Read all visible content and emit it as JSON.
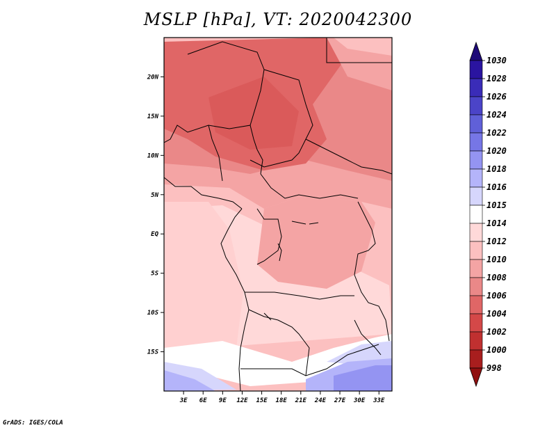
{
  "title": "MSLP [hPa], VT: 2020042300",
  "credit": "GrADS: IGES/COLA",
  "map": {
    "lon_ticks": [
      "3E",
      "6E",
      "9E",
      "12E",
      "15E",
      "18E",
      "21E",
      "24E",
      "27E",
      "30E",
      "33E"
    ],
    "lat_ticks": [
      "20N",
      "15N",
      "10N",
      "5N",
      "EQ",
      "5S",
      "10S",
      "15S"
    ],
    "lon_range": [
      0,
      35
    ],
    "lat_range": [
      -20,
      25
    ]
  },
  "legend": {
    "levels": [
      "1030",
      "1028",
      "1026",
      "1024",
      "1022",
      "1020",
      "1018",
      "1016",
      "1015",
      "1014",
      "1012",
      "1010",
      "1008",
      "1006",
      "1004",
      "1002",
      "1000",
      "998"
    ],
    "colors": {
      "above_1030": "#1e0a78",
      "1028_1030": "#2a14a0",
      "1026_1028": "#3a2cb8",
      "1024_1026": "#4b44c8",
      "1022_1024": "#6060d8",
      "1020_1022": "#7676e6",
      "1018_1020": "#9494f2",
      "1016_1018": "#b4b4fa",
      "1015_1016": "#d6d6fc",
      "1014_1015": "#ffffff",
      "1012_1014": "#ffd9d9",
      "1010_1012": "#fcc0c0",
      "1008_1010": "#f4a4a4",
      "1006_1008": "#ea8888",
      "1004_1006": "#e06666",
      "1002_1004": "#d44848",
      "1000_1002": "#c03030",
      "998_1000": "#a81e1e",
      "below_998": "#901010"
    }
  }
}
